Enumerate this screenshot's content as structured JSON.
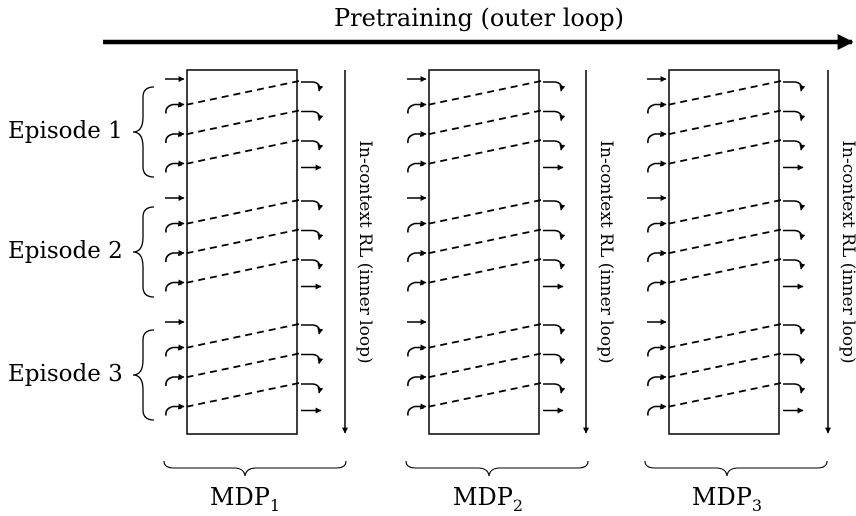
{
  "header": {
    "title": "Pretraining (outer loop)"
  },
  "episodes": [
    {
      "label": "Episode 1"
    },
    {
      "label": "Episode 2"
    },
    {
      "label": "Episode 3"
    }
  ],
  "side_label": "In-context RL (inner loop)",
  "mdps": [
    {
      "name": "MDP",
      "sub": "1"
    },
    {
      "name": "MDP",
      "sub": "2"
    },
    {
      "name": "MDP",
      "sub": "3"
    }
  ],
  "steps_per_episode": 4,
  "colors": {
    "ink": "#000000",
    "background": "#ffffff"
  }
}
